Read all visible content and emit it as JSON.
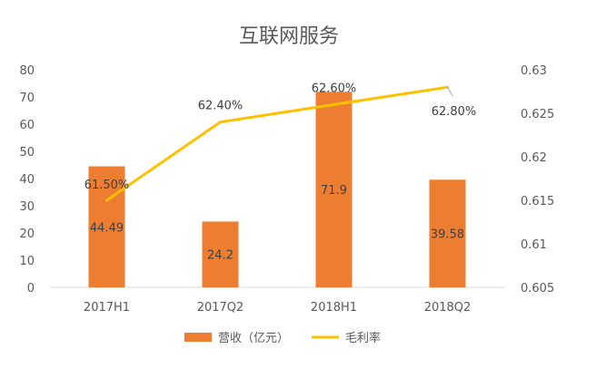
{
  "chart_data": {
    "type": "bar",
    "title": "互联网服务",
    "categories": [
      "2017H1",
      "2017Q2",
      "2018H1",
      "2018Q2"
    ],
    "series": [
      {
        "name": "营收（亿元）",
        "type": "bar",
        "axis": "left",
        "color": "#ED7D31",
        "values": [
          44.49,
          24.2,
          71.9,
          39.58
        ],
        "labels": [
          "44.49",
          "24.2",
          "71.9",
          "39.58"
        ]
      },
      {
        "name": "毛利率",
        "type": "line",
        "axis": "right",
        "color": "#FFC000",
        "values": [
          0.615,
          0.624,
          0.626,
          0.628
        ],
        "labels": [
          "61.50%",
          "62.40%",
          "62.60%",
          "62.80%"
        ]
      }
    ],
    "y_left": {
      "min": 0,
      "max": 80,
      "ticks": [
        "0",
        "10",
        "20",
        "30",
        "40",
        "50",
        "60",
        "70",
        "80"
      ]
    },
    "y_right": {
      "min": 0.605,
      "max": 0.63,
      "ticks": [
        "0.605",
        "0.61",
        "0.615",
        "0.62",
        "0.625",
        "0.63"
      ]
    },
    "grid": false,
    "legend_position": "bottom"
  }
}
